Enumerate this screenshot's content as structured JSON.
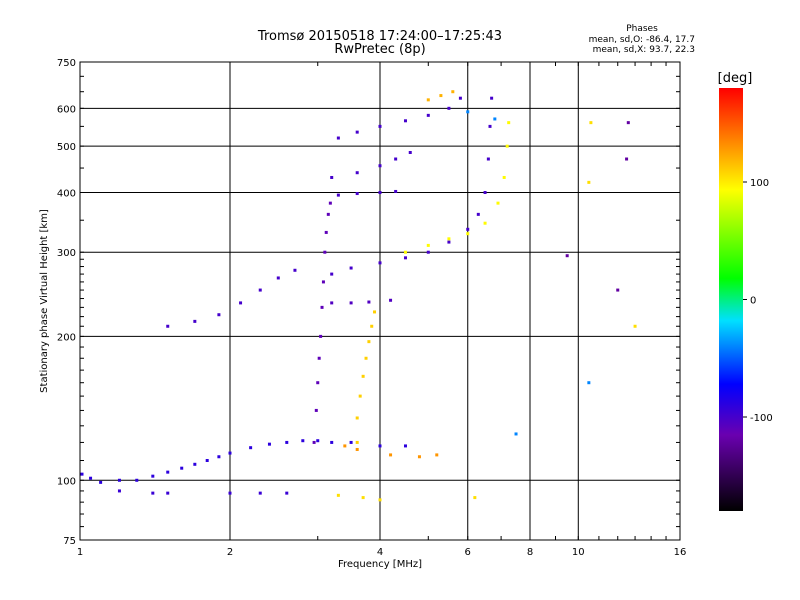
{
  "header": {
    "title_line1": "Tromsø 20150518 17:24:00–17:25:43",
    "title_line2": "RwPretec (8p)"
  },
  "stats": {
    "heading": "Phases",
    "line_o": "mean, sd,O: -86.4, 17.7",
    "line_x": "mean, sd,X:  93.7, 22.3"
  },
  "chart_data": {
    "type": "scatter",
    "xlabel": "Frequency [MHz]",
    "ylabel": "Stationary phase Virtual Height [km]",
    "xscale": "log",
    "yscale": "log",
    "xlim": [
      1,
      16
    ],
    "ylim": [
      75,
      750
    ],
    "x_ticks": [
      1,
      2,
      4,
      6,
      8,
      10,
      16
    ],
    "x_tick_labels": [
      "1",
      "2",
      "4",
      "6",
      "8",
      "10",
      "16"
    ],
    "y_ticks": [
      75,
      100,
      200,
      300,
      400,
      500,
      600,
      750
    ],
    "y_tick_labels": [
      "75",
      "100",
      "200",
      "300",
      "400",
      "500",
      "600",
      "750"
    ],
    "grid": true,
    "colorbar": {
      "label": "[deg]",
      "range": [
        -180,
        180
      ],
      "ticks": [
        100,
        0,
        -100
      ],
      "tick_labels": [
        "100",
        "0",
        "-100"
      ]
    },
    "series": [
      {
        "phase": -90,
        "points": [
          [
            1.0,
            103
          ],
          [
            1.05,
            101
          ],
          [
            1.1,
            99
          ],
          [
            1.2,
            100
          ],
          [
            1.3,
            100
          ],
          [
            1.4,
            102
          ],
          [
            1.5,
            104
          ],
          [
            1.6,
            106
          ],
          [
            1.7,
            108
          ],
          [
            1.8,
            110
          ],
          [
            1.9,
            112
          ],
          [
            2.0,
            114
          ],
          [
            2.2,
            117
          ],
          [
            2.4,
            119
          ],
          [
            2.6,
            120
          ],
          [
            2.8,
            121
          ],
          [
            3.0,
            121
          ],
          [
            3.2,
            120
          ],
          [
            3.5,
            120
          ],
          [
            4.0,
            118
          ],
          [
            4.5,
            118
          ]
        ]
      },
      {
        "phase": -95,
        "points": [
          [
            1.2,
            95
          ],
          [
            1.4,
            94
          ],
          [
            1.5,
            94
          ],
          [
            2.0,
            94
          ],
          [
            2.3,
            94
          ],
          [
            2.6,
            94
          ]
        ]
      },
      {
        "phase": -110,
        "points": [
          [
            2.95,
            120
          ],
          [
            2.98,
            140
          ],
          [
            3.0,
            160
          ],
          [
            3.02,
            180
          ],
          [
            3.04,
            200
          ],
          [
            3.06,
            230
          ],
          [
            3.08,
            260
          ],
          [
            3.1,
            300
          ],
          [
            3.12,
            330
          ],
          [
            3.15,
            360
          ],
          [
            3.18,
            380
          ]
        ]
      },
      {
        "phase": -100,
        "points": [
          [
            1.5,
            210
          ],
          [
            1.7,
            215
          ],
          [
            1.9,
            222
          ],
          [
            2.1,
            235
          ],
          [
            2.3,
            250
          ],
          [
            2.5,
            265
          ],
          [
            2.7,
            275
          ]
        ]
      },
      {
        "phase": -100,
        "points": [
          [
            3.2,
            270
          ],
          [
            3.5,
            278
          ],
          [
            4.0,
            285
          ],
          [
            4.5,
            292
          ],
          [
            5.0,
            300
          ],
          [
            5.5,
            315
          ],
          [
            6.0,
            335
          ],
          [
            6.3,
            360
          ],
          [
            6.5,
            400
          ],
          [
            6.6,
            470
          ],
          [
            6.65,
            550
          ],
          [
            6.7,
            630
          ]
        ]
      },
      {
        "phase": -105,
        "points": [
          [
            3.2,
            235
          ],
          [
            3.5,
            235
          ],
          [
            3.8,
            236
          ],
          [
            4.2,
            238
          ]
        ]
      },
      {
        "phase": -100,
        "points": [
          [
            3.3,
            395
          ],
          [
            3.6,
            398
          ],
          [
            4.0,
            400
          ],
          [
            4.3,
            402
          ]
        ]
      },
      {
        "phase": -100,
        "points": [
          [
            3.2,
            430
          ],
          [
            3.6,
            440
          ],
          [
            4.0,
            455
          ],
          [
            4.3,
            470
          ],
          [
            4.6,
            485
          ]
        ]
      },
      {
        "phase": -100,
        "points": [
          [
            3.3,
            520
          ],
          [
            3.6,
            535
          ],
          [
            4.0,
            550
          ],
          [
            4.5,
            565
          ],
          [
            5.0,
            580
          ],
          [
            5.5,
            600
          ],
          [
            5.8,
            630
          ]
        ]
      },
      {
        "phase": 95,
        "points": [
          [
            4.5,
            300
          ],
          [
            5.0,
            310
          ],
          [
            5.5,
            320
          ],
          [
            6.0,
            328
          ],
          [
            6.5,
            345
          ],
          [
            6.9,
            380
          ],
          [
            7.1,
            430
          ],
          [
            7.2,
            500
          ],
          [
            7.25,
            560
          ]
        ]
      },
      {
        "phase": 110,
        "points": [
          [
            3.6,
            120
          ],
          [
            3.6,
            135
          ],
          [
            3.65,
            150
          ],
          [
            3.7,
            165
          ],
          [
            3.75,
            180
          ],
          [
            3.8,
            195
          ],
          [
            3.85,
            210
          ],
          [
            3.9,
            225
          ]
        ]
      },
      {
        "phase": 130,
        "points": [
          [
            3.4,
            118
          ],
          [
            3.6,
            116
          ],
          [
            4.2,
            113
          ],
          [
            4.8,
            112
          ],
          [
            5.2,
            113
          ]
        ]
      },
      {
        "phase": 120,
        "points": [
          [
            5.0,
            625
          ],
          [
            5.3,
            638
          ],
          [
            5.6,
            650
          ]
        ]
      },
      {
        "phase": 105,
        "points": [
          [
            3.3,
            93
          ],
          [
            3.7,
            92
          ],
          [
            4.0,
            91
          ],
          [
            6.2,
            92
          ],
          [
            10.5,
            420
          ],
          [
            10.6,
            560
          ],
          [
            13.0,
            210
          ]
        ]
      },
      {
        "phase": -120,
        "points": [
          [
            9.5,
            295
          ],
          [
            12.0,
            250
          ],
          [
            12.5,
            470
          ],
          [
            12.6,
            560
          ]
        ]
      },
      {
        "phase": -40,
        "points": [
          [
            6.0,
            590
          ],
          [
            6.8,
            570
          ],
          [
            7.5,
            125
          ],
          [
            10.5,
            160
          ]
        ]
      }
    ]
  }
}
